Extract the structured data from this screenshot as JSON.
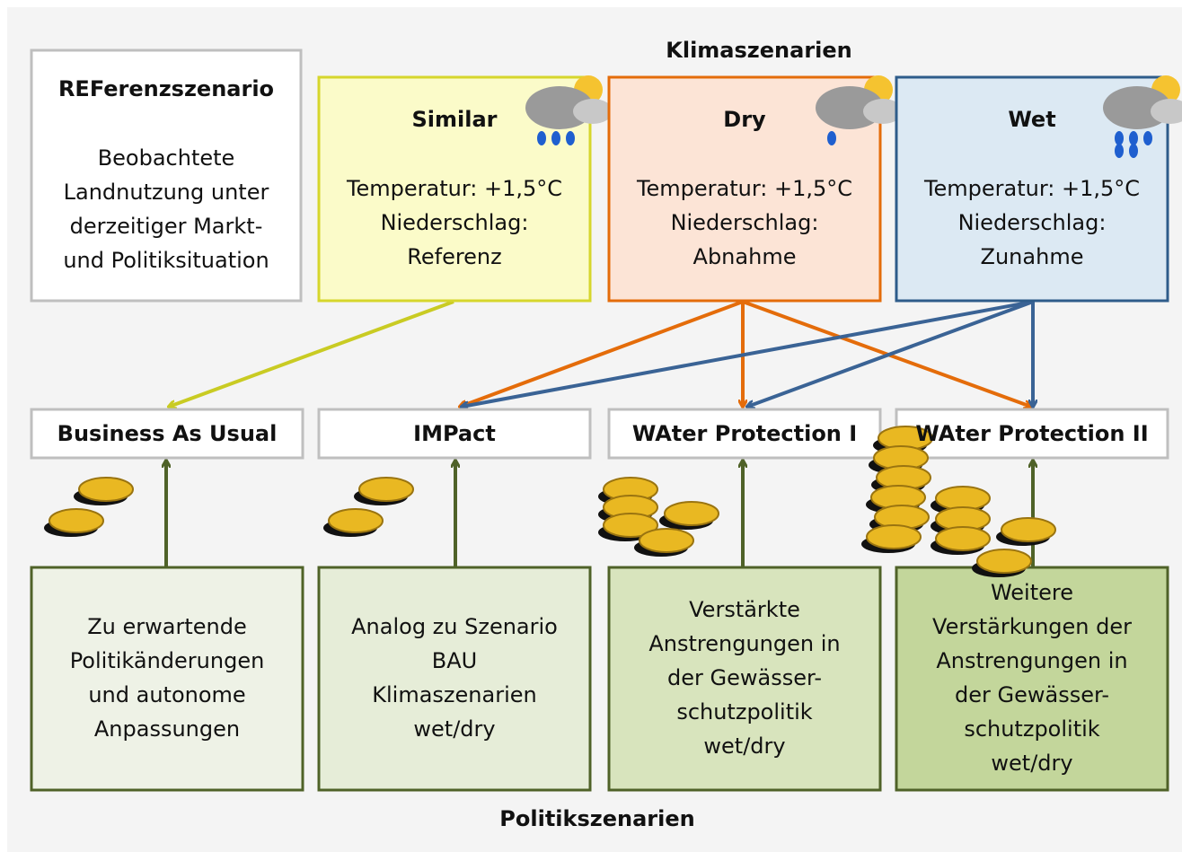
{
  "header": "Klimaszenarien",
  "footer": "Politikszenarien",
  "reference": {
    "title": "REFerenzszenario",
    "lines": [
      "Beobachtete",
      "Landnutzung unter",
      "derzeitiger Markt-",
      "und Politiksituation"
    ]
  },
  "climate": [
    {
      "title": "Similar",
      "lines": [
        "Temperatur: +1,5°C",
        "Niederschlag:",
        "Referenz"
      ]
    },
    {
      "title": "Dry",
      "lines": [
        "Temperatur: +1,5°C",
        "Niederschlag:",
        "Abnahme"
      ]
    },
    {
      "title": "Wet",
      "lines": [
        "Temperatur: +1,5°C",
        "Niederschlag:",
        "Zunahme"
      ]
    }
  ],
  "policies": [
    {
      "label": "Business As Usual",
      "lines": [
        "Zu erwartende",
        "Politikänderungen",
        "und autonome",
        "Anpassungen"
      ]
    },
    {
      "label": "IMPact",
      "lines": [
        "Analog zu Szenario",
        "BAU",
        "Klimaszenarien",
        "wet/dry"
      ]
    },
    {
      "label": "WAter Protection I",
      "lines": [
        "Verstärkte",
        "Anstrengungen in",
        "der Gewässer-",
        "schutzpolitik",
        "wet/dry"
      ]
    },
    {
      "label": "WAter Protection II",
      "lines": [
        "Weitere",
        "Verstärkungen der",
        "Anstrengungen in",
        "der Gewässer-",
        "schutzpolitik",
        "wet/dry"
      ]
    }
  ]
}
